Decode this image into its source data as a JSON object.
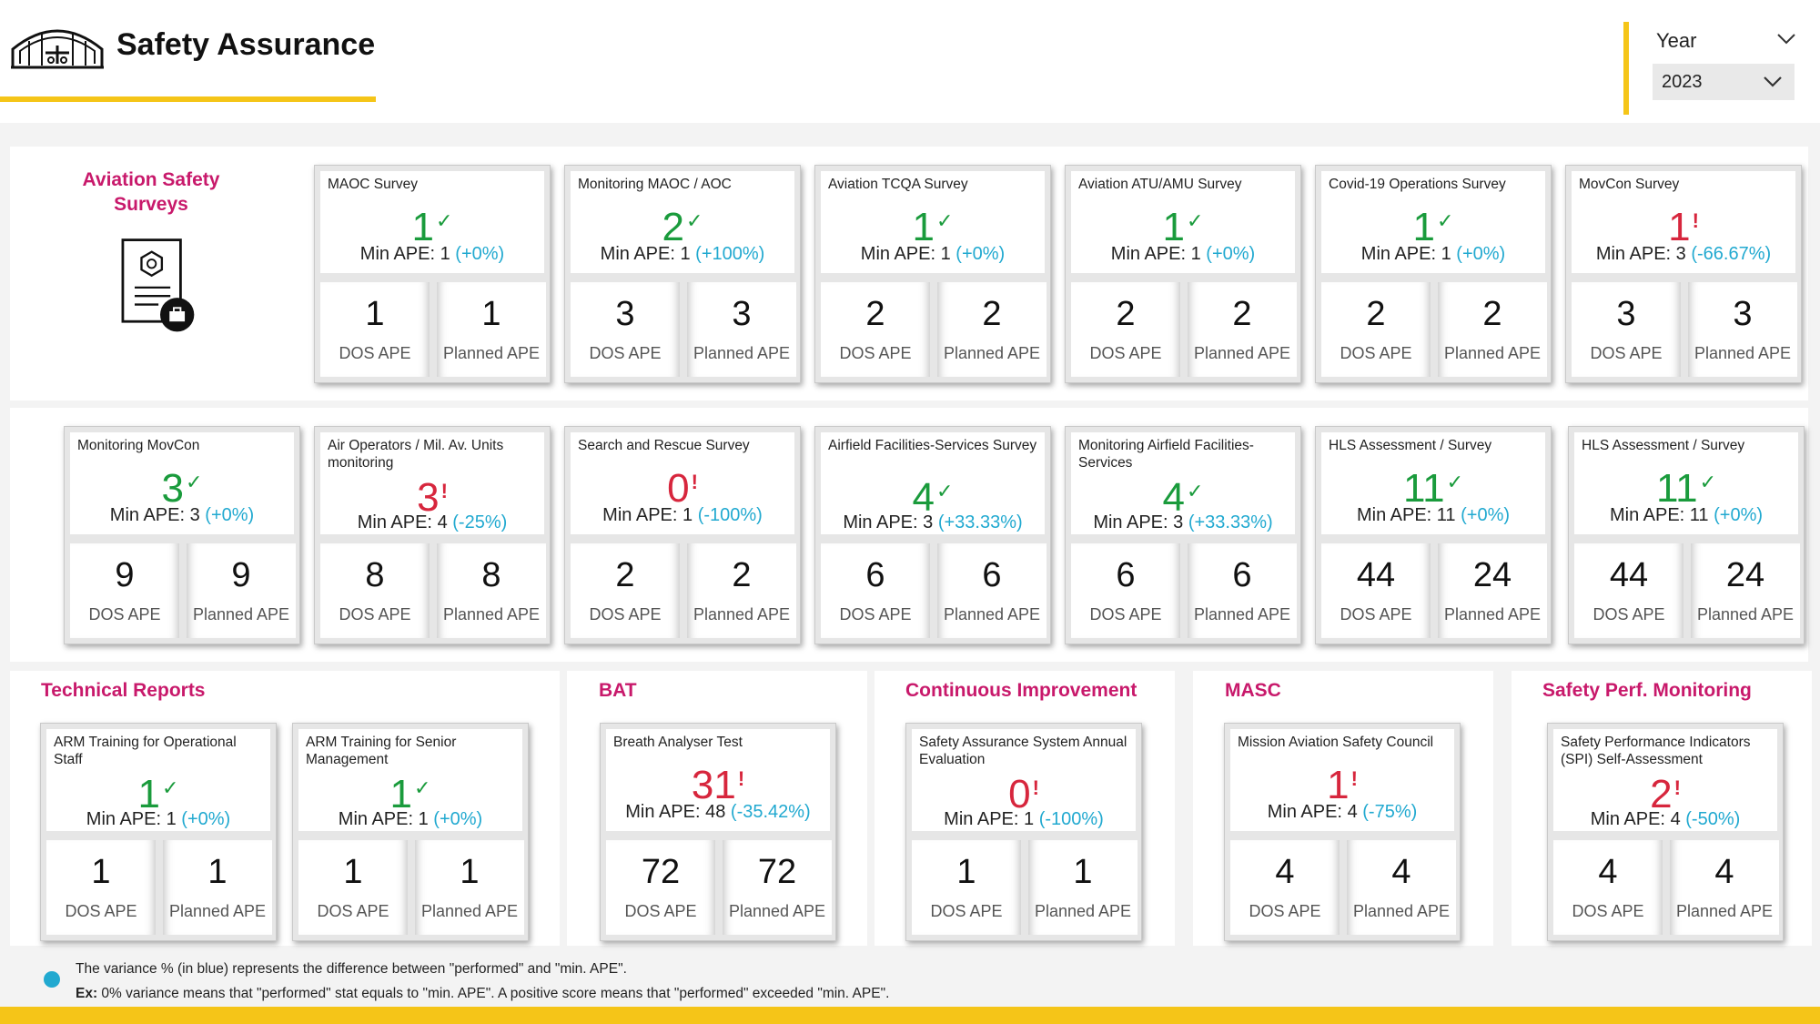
{
  "header": {
    "title": "Safety Assurance",
    "year_label": "Year",
    "year_value": "2023"
  },
  "colors": {
    "accent": "#f5c518",
    "section": "#c8196b",
    "ok": "#1a9b3c",
    "warn": "#d7263d",
    "variance": "#21a9d0"
  },
  "labels": {
    "min_ape": "Min APE:",
    "dos": "DOS APE",
    "planned": "Planned APE"
  },
  "sections": {
    "surveys": "Aviation Safety Surveys",
    "tech": "Technical Reports",
    "bat": "BAT",
    "ci": "Continuous Improvement",
    "masc": "MASC",
    "spm": "Safety Perf. Monitoring"
  },
  "cards": [
    {
      "name": "MAOC Survey",
      "value": "1",
      "status": "ok",
      "mark": "✓",
      "min": "1",
      "variance": "(+0%)",
      "dos": "1",
      "planned": "1"
    },
    {
      "name": "Monitoring MAOC / AOC",
      "value": "2",
      "status": "ok",
      "mark": "✓",
      "min": "1",
      "variance": "(+100%)",
      "dos": "3",
      "planned": "3"
    },
    {
      "name": "Aviation TCQA Survey",
      "value": "1",
      "status": "ok",
      "mark": "✓",
      "min": "1",
      "variance": "(+0%)",
      "dos": "2",
      "planned": "2"
    },
    {
      "name": "Aviation ATU/AMU Survey",
      "value": "1",
      "status": "ok",
      "mark": "✓",
      "min": "1",
      "variance": "(+0%)",
      "dos": "2",
      "planned": "2"
    },
    {
      "name": "Covid-19 Operations Survey",
      "value": "1",
      "status": "ok",
      "mark": "✓",
      "min": "1",
      "variance": "(+0%)",
      "dos": "2",
      "planned": "2"
    },
    {
      "name": "MovCon Survey",
      "value": "1",
      "status": "warn",
      "mark": "!",
      "min": "3",
      "variance": "(-66.67%)",
      "dos": "3",
      "planned": "3"
    },
    {
      "name": "Monitoring MovCon",
      "value": "3",
      "status": "ok",
      "mark": "✓",
      "min": "3",
      "variance": "(+0%)",
      "dos": "9",
      "planned": "9"
    },
    {
      "name": "Air Operators / Mil. Av. Units monitoring",
      "value": "3",
      "status": "warn",
      "mark": "!",
      "min": "4",
      "variance": "(-25%)",
      "dos": "8",
      "planned": "8"
    },
    {
      "name": "Search and Rescue Survey",
      "value": "0",
      "status": "warn",
      "mark": "!",
      "min": "1",
      "variance": "(-100%)",
      "dos": "2",
      "planned": "2"
    },
    {
      "name": "Airfield Facilities-Services Survey",
      "value": "4",
      "status": "ok",
      "mark": "✓",
      "min": "3",
      "variance": "(+33.33%)",
      "dos": "6",
      "planned": "6"
    },
    {
      "name": "Monitoring Airfield Facilities-Services",
      "value": "4",
      "status": "ok",
      "mark": "✓",
      "min": "3",
      "variance": "(+33.33%)",
      "dos": "6",
      "planned": "6"
    },
    {
      "name": "HLS Assessment / Survey",
      "value": "11",
      "status": "ok",
      "mark": "✓",
      "min": "11",
      "variance": "(+0%)",
      "dos": "44",
      "planned": "24"
    },
    {
      "name": "HLS Assessment / Survey",
      "value": "11",
      "status": "ok",
      "mark": "✓",
      "min": "11",
      "variance": "(+0%)",
      "dos": "44",
      "planned": "24"
    },
    {
      "name": "ARM Training for Operational Staff",
      "value": "1",
      "status": "ok",
      "mark": "✓",
      "min": "1",
      "variance": "(+0%)",
      "dos": "1",
      "planned": "1"
    },
    {
      "name": "ARM Training for Senior Management",
      "value": "1",
      "status": "ok",
      "mark": "✓",
      "min": "1",
      "variance": "(+0%)",
      "dos": "1",
      "planned": "1"
    },
    {
      "name": "Breath Analyser Test",
      "value": "31",
      "status": "warn",
      "mark": "!",
      "min": "48",
      "variance": "(-35.42%)",
      "dos": "72",
      "planned": "72"
    },
    {
      "name": "Safety Assurance System Annual Evaluation",
      "value": "0",
      "status": "warn",
      "mark": "!",
      "min": "1",
      "variance": "(-100%)",
      "dos": "1",
      "planned": "1"
    },
    {
      "name": "Mission Aviation Safety Council",
      "value": "1",
      "status": "warn",
      "mark": "!",
      "min": "4",
      "variance": "(-75%)",
      "dos": "4",
      "planned": "4"
    },
    {
      "name": "Safety Performance Indicators (SPI) Self-Assessment",
      "value": "2",
      "status": "warn",
      "mark": "!",
      "min": "4",
      "variance": "(-50%)",
      "dos": "4",
      "planned": "4"
    }
  ],
  "footer": {
    "line1": "The variance % (in blue) represents the difference between \"performed\" and \"min. APE\".",
    "line2_bold": "Ex:",
    "line2": " 0% variance means that \"performed\" stat equals to \"min. APE\". A positive score means that \"performed\" exceeded \"min. APE\"."
  }
}
